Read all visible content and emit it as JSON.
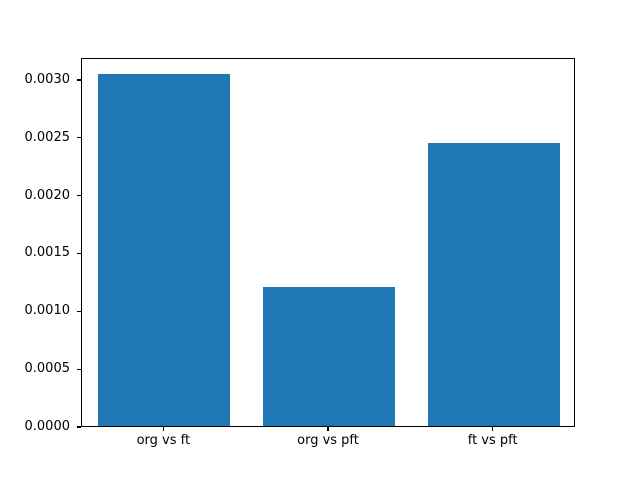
{
  "chart_data": {
    "type": "bar",
    "title": "",
    "xlabel": "",
    "ylabel": "",
    "categories": [
      "org vs ft",
      "org vs pft",
      "ft vs pft"
    ],
    "values": [
      0.00304,
      0.0012,
      0.00245
    ],
    "ylim": [
      0,
      0.00319
    ],
    "yticks": [
      0.0,
      0.0005,
      0.001,
      0.0015,
      0.002,
      0.0025,
      0.003
    ],
    "ytick_decimals": 4,
    "bar_color": "#1f77b4",
    "bar_width_fraction": 0.8,
    "grid": false,
    "legend": "none",
    "background_color": "#ffffff",
    "spine_color": "#000000",
    "text_color": "#000000"
  }
}
